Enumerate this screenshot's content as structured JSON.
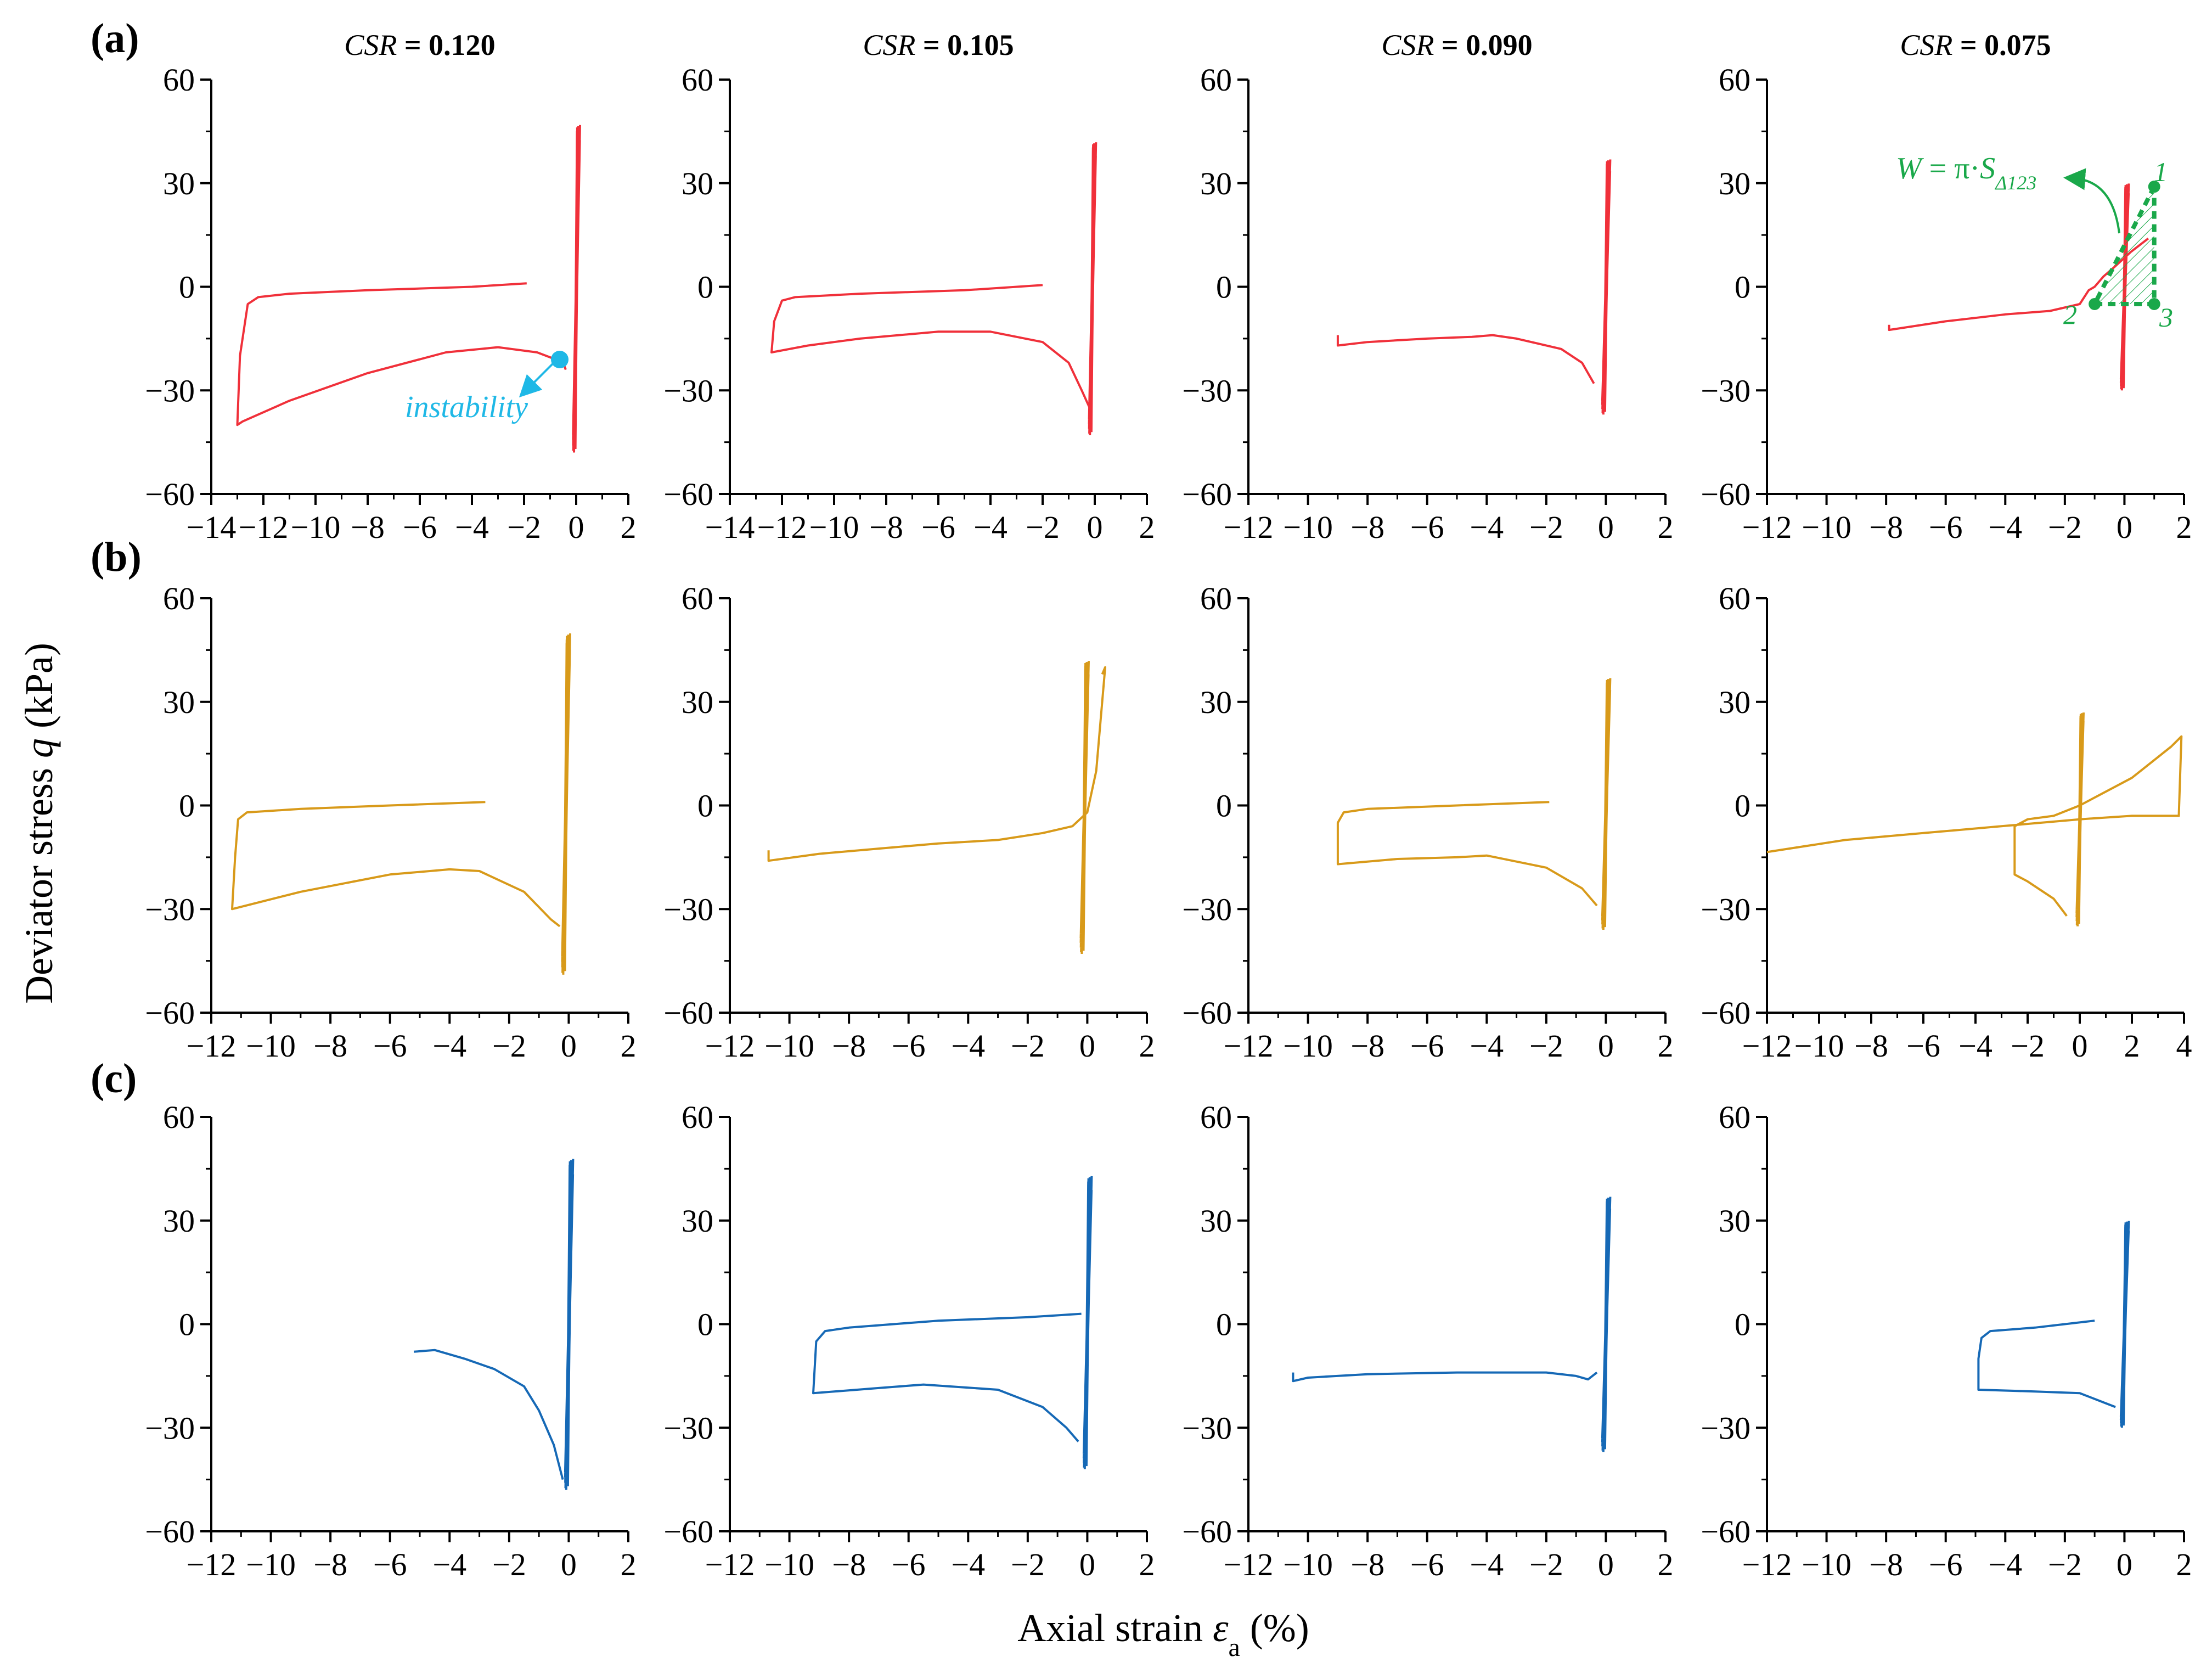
{
  "figure": {
    "y_axis_title": "Deviator stress q (kPa)",
    "y_axis_title_prefix": "Deviator stress ",
    "y_axis_title_var": "q",
    "y_axis_title_suffix": " (kPa)",
    "x_axis_title_prefix": "Axial strain ",
    "x_axis_title_var": "ε",
    "x_axis_title_sub": "a",
    "x_axis_title_suffix": " (%)",
    "row_labels": [
      "(a)",
      "(b)",
      "(c)"
    ],
    "column_titles": [
      {
        "italic": "CSR",
        "bold": " = 0.120"
      },
      {
        "italic": "CSR",
        "bold": " = 0.105"
      },
      {
        "italic": "CSR",
        "bold": " = 0.090"
      },
      {
        "italic": "CSR",
        "bold": " = 0.075"
      }
    ],
    "row_colors": [
      "#f0303a",
      "#d89a1a",
      "#1669b6"
    ],
    "annotation_color_instability": "#1fb8e6",
    "annotation_color_energy": "#1aa84a",
    "annotations": {
      "instability_text": "instability",
      "energy_W": "W",
      "energy_eq": " = π·",
      "energy_S": "S",
      "energy_sub": "Δ123",
      "pt1": "1",
      "pt2": "2",
      "pt3": "3"
    }
  },
  "chart_data": [
    {
      "row": 0,
      "col": 0,
      "type": "line",
      "xlim": [
        -14,
        2
      ],
      "ylim": [
        -60,
        60
      ],
      "xticks": [
        -14,
        -12,
        -10,
        -8,
        -6,
        -4,
        -2,
        0,
        2
      ],
      "yticks": [
        -60,
        -30,
        0,
        30,
        60
      ],
      "series": [
        {
          "name": "flow",
          "x": [
            -1.9,
            -4,
            -8,
            -11,
            -12.2,
            -12.6,
            -12.9,
            -13,
            -12.8,
            -11,
            -8,
            -5,
            -3,
            -1.5,
            -0.8,
            -0.5,
            -0.4
          ],
          "y": [
            1,
            0,
            -1,
            -2,
            -3,
            -5,
            -20,
            -40,
            -39,
            -33,
            -25,
            -19,
            -17.5,
            -19,
            -21,
            -22,
            -24
          ]
        }
      ],
      "cycles": {
        "center": 0,
        "qmax": 47,
        "qmin": -48
      },
      "instability_point": [
        -0.7,
        -21
      ]
    },
    {
      "row": 0,
      "col": 1,
      "type": "line",
      "xlim": [
        -14,
        2
      ],
      "ylim": [
        -60,
        60
      ],
      "xticks": [
        -14,
        -12,
        -10,
        -8,
        -6,
        -4,
        -2,
        0,
        2
      ],
      "yticks": [
        -60,
        -30,
        0,
        30,
        60
      ],
      "series": [
        {
          "name": "flow",
          "x": [
            -2,
            -5,
            -9,
            -11.5,
            -12,
            -12.3,
            -12.4,
            -11,
            -9,
            -6,
            -4,
            -2,
            -1,
            -0.5,
            -0.2
          ],
          "y": [
            0.5,
            -1,
            -2,
            -3,
            -4,
            -10,
            -19,
            -17,
            -15,
            -13,
            -13,
            -16,
            -22,
            -30,
            -35
          ]
        }
      ],
      "cycles": {
        "center": -0.1,
        "qmax": 42,
        "qmin": -43
      }
    },
    {
      "row": 0,
      "col": 2,
      "type": "line",
      "xlim": [
        -12,
        2
      ],
      "ylim": [
        -60,
        60
      ],
      "xticks": [
        -12,
        -10,
        -8,
        -6,
        -4,
        -2,
        0,
        2
      ],
      "yticks": [
        -60,
        -30,
        0,
        30,
        60
      ],
      "series": [
        {
          "name": "flow",
          "x": [
            -9,
            -9,
            -8,
            -6,
            -4.5,
            -3.8,
            -3,
            -1.5,
            -0.8,
            -0.4
          ],
          "y": [
            -14,
            -17,
            -16,
            -15,
            -14.5,
            -14,
            -15,
            -18,
            -22,
            -28
          ]
        }
      ],
      "cycles": {
        "center": 0,
        "qmax": 37,
        "qmin": -37
      }
    },
    {
      "row": 0,
      "col": 3,
      "type": "line",
      "xlim": [
        -12,
        2
      ],
      "ylim": [
        -60,
        60
      ],
      "xticks": [
        -12,
        -10,
        -8,
        -6,
        -4,
        -2,
        0,
        2
      ],
      "yticks": [
        -60,
        -30,
        0,
        30,
        60
      ],
      "series": [
        {
          "name": "flow",
          "x": [
            -7.9,
            -7.9,
            -6,
            -4,
            -2.5,
            -1.5,
            -1.2,
            -1.0,
            -0.7,
            -0.3,
            0.2,
            0.8
          ],
          "y": [
            -11,
            -12.5,
            -10,
            -8,
            -7,
            -5,
            -1,
            0,
            3,
            6,
            10,
            14
          ]
        }
      ],
      "cycles": {
        "center": 0,
        "qmax": 30,
        "qmin": -30
      },
      "triangle": {
        "p1": [
          1,
          29
        ],
        "p2": [
          -1,
          -5
        ],
        "p3": [
          1,
          -5
        ]
      }
    },
    {
      "row": 1,
      "col": 0,
      "type": "line",
      "xlim": [
        -12,
        2
      ],
      "ylim": [
        -60,
        60
      ],
      "xticks": [
        -12,
        -10,
        -8,
        -6,
        -4,
        -2,
        0,
        2
      ],
      "yticks": [
        -60,
        -30,
        0,
        30,
        60
      ],
      "series": [
        {
          "name": "flow",
          "x": [
            -2.8,
            -6,
            -9,
            -10.8,
            -11.1,
            -11.2,
            -11.3,
            -9,
            -6,
            -4,
            -3,
            -1.5,
            -0.6,
            -0.3
          ],
          "y": [
            1,
            0,
            -1,
            -2,
            -4,
            -15,
            -30,
            -25,
            -20,
            -18.5,
            -19,
            -25,
            -33,
            -35
          ]
        }
      ],
      "cycles": {
        "center": -0.1,
        "qmax": 50,
        "qmin": -49
      }
    },
    {
      "row": 1,
      "col": 1,
      "type": "line",
      "xlim": [
        -12,
        2
      ],
      "ylim": [
        -60,
        60
      ],
      "xticks": [
        -12,
        -10,
        -8,
        -6,
        -4,
        -2,
        0,
        2
      ],
      "yticks": [
        -60,
        -30,
        0,
        30,
        60
      ],
      "series": [
        {
          "name": "flow",
          "x": [
            -10.7,
            -10.7,
            -9,
            -7,
            -5,
            -3,
            -1.5,
            -0.5,
            0,
            0.3,
            0.6,
            0.5
          ],
          "y": [
            -13,
            -16,
            -14,
            -12.5,
            -11,
            -10,
            -8,
            -6,
            -2,
            10,
            40,
            38
          ]
        }
      ],
      "cycles": {
        "center": -0.1,
        "qmax": 42,
        "qmin": -43
      }
    },
    {
      "row": 1,
      "col": 2,
      "type": "line",
      "xlim": [
        -12,
        2
      ],
      "ylim": [
        -60,
        60
      ],
      "xticks": [
        -12,
        -10,
        -8,
        -6,
        -4,
        -2,
        0,
        2
      ],
      "yticks": [
        -60,
        -30,
        0,
        30,
        60
      ],
      "series": [
        {
          "name": "flow",
          "x": [
            -1.9,
            -5,
            -8,
            -8.8,
            -9,
            -9,
            -7,
            -5,
            -4,
            -2,
            -0.8,
            -0.3
          ],
          "y": [
            1,
            0,
            -1,
            -2,
            -5,
            -17,
            -15.5,
            -15,
            -14.5,
            -18,
            -24,
            -29
          ]
        }
      ],
      "cycles": {
        "center": 0,
        "qmax": 37,
        "qmin": -36
      }
    },
    {
      "row": 1,
      "col": 3,
      "type": "line",
      "xlim": [
        -12,
        4
      ],
      "ylim": [
        -60,
        60
      ],
      "xticks": [
        -12,
        -10,
        -8,
        -6,
        -4,
        -2,
        0,
        2,
        4
      ],
      "yticks": [
        -60,
        -30,
        0,
        30,
        60
      ],
      "series": [
        {
          "name": "loop",
          "x": [
            -12,
            -9,
            -6,
            -3,
            0,
            2,
            3.8,
            3.9,
            3.5,
            2,
            0,
            -1,
            -2,
            -2.5,
            -2.5,
            -2,
            -1,
            -0.5
          ],
          "y": [
            -13.5,
            -10,
            -8,
            -6,
            -4,
            -3,
            -3,
            20,
            17,
            8,
            0,
            -3,
            -4,
            -6,
            -20,
            -22,
            -27,
            -32
          ]
        }
      ],
      "cycles": {
        "center": 0,
        "qmax": 27,
        "qmin": -35
      }
    },
    {
      "row": 2,
      "col": 0,
      "type": "line",
      "xlim": [
        -12,
        2
      ],
      "ylim": [
        -60,
        60
      ],
      "xticks": [
        -12,
        -10,
        -8,
        -6,
        -4,
        -2,
        0,
        2
      ],
      "yticks": [
        -60,
        -30,
        0,
        30,
        60
      ],
      "series": [
        {
          "name": "flow",
          "x": [
            -5.2,
            -4.5,
            -3.5,
            -2.5,
            -1.5,
            -1,
            -0.5,
            -0.2
          ],
          "y": [
            -8,
            -7.5,
            -10,
            -13,
            -18,
            -25,
            -35,
            -45
          ]
        }
      ],
      "cycles": {
        "center": 0,
        "qmax": 48,
        "qmin": -48
      }
    },
    {
      "row": 2,
      "col": 1,
      "type": "line",
      "xlim": [
        -12,
        2
      ],
      "ylim": [
        -60,
        60
      ],
      "xticks": [
        -12,
        -10,
        -8,
        -6,
        -4,
        -2,
        0,
        2
      ],
      "yticks": [
        -60,
        -30,
        0,
        30,
        60
      ],
      "series": [
        {
          "name": "flow",
          "x": [
            -0.2,
            -2,
            -5,
            -8,
            -8.8,
            -9.1,
            -9.2,
            -7,
            -5.5,
            -3,
            -1.5,
            -0.7,
            -0.3
          ],
          "y": [
            3,
            2,
            1,
            -1,
            -2,
            -5,
            -20,
            -18.5,
            -17.5,
            -19,
            -24,
            -30,
            -34
          ]
        }
      ],
      "cycles": {
        "center": 0,
        "qmax": 43,
        "qmin": -42
      }
    },
    {
      "row": 2,
      "col": 2,
      "type": "line",
      "xlim": [
        -12,
        2
      ],
      "ylim": [
        -60,
        60
      ],
      "xticks": [
        -12,
        -10,
        -8,
        -6,
        -4,
        -2,
        0,
        2
      ],
      "yticks": [
        -60,
        -30,
        0,
        30,
        60
      ],
      "series": [
        {
          "name": "flow",
          "x": [
            -10.5,
            -10.5,
            -10,
            -8,
            -5,
            -2,
            -1,
            -0.6,
            -0.3
          ],
          "y": [
            -14,
            -16.5,
            -15.5,
            -14.5,
            -14,
            -14,
            -15,
            -16,
            -14
          ]
        }
      ],
      "cycles": {
        "center": 0,
        "qmax": 37,
        "qmin": -37
      }
    },
    {
      "row": 2,
      "col": 3,
      "type": "line",
      "xlim": [
        -12,
        2
      ],
      "ylim": [
        -60,
        60
      ],
      "xticks": [
        -12,
        -10,
        -8,
        -6,
        -4,
        -2,
        0,
        2
      ],
      "yticks": [
        -60,
        -30,
        0,
        30,
        60
      ],
      "series": [
        {
          "name": "flow",
          "x": [
            -1,
            -3,
            -4.5,
            -4.8,
            -4.9,
            -4.9,
            -3,
            -1.5,
            -0.6,
            -0.3
          ],
          "y": [
            1,
            -1,
            -2,
            -4,
            -10,
            -19,
            -19.5,
            -20,
            -23,
            -24
          ]
        }
      ],
      "cycles": {
        "center": 0,
        "qmax": 30,
        "qmin": -30
      }
    }
  ]
}
